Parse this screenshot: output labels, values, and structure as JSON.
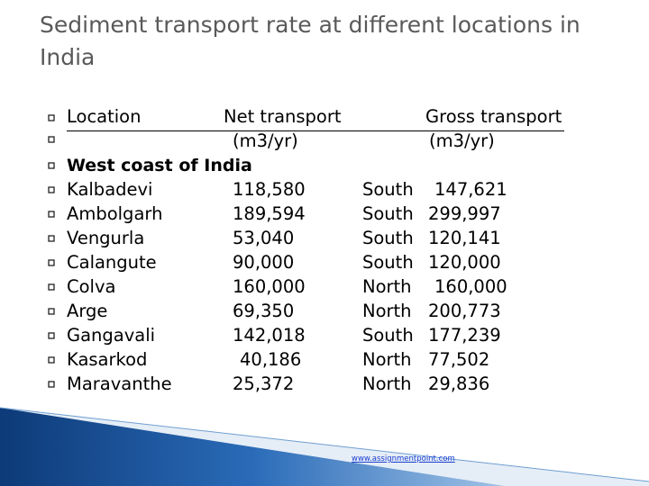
{
  "title": "Sediment transport rate at different locations in India",
  "table": {
    "header": {
      "location": "Location",
      "net_line1": "Net transport",
      "net_line2": "(m3/yr)",
      "gross_line1": "Gross transport",
      "gross_line2": "(m3/yr)"
    },
    "section": "West coast of India",
    "rows": [
      {
        "location": "Kalbadevi",
        "net": "118,580",
        "direction": "South",
        "gross": "147,621"
      },
      {
        "location": "Ambolgarh",
        "net": "189,594",
        "direction": "South",
        "gross": "299,997"
      },
      {
        "location": "Vengurla",
        "net": "53,040",
        "direction": "South",
        "gross": "120,141"
      },
      {
        "location": "Calangute",
        "net": "90,000",
        "direction": "South",
        "gross": "120,000"
      },
      {
        "location": "Colva",
        "net": "160,000",
        "direction": "North",
        "gross": "160,000"
      },
      {
        "location": "Arge",
        "net": "69,350",
        "direction": "North",
        "gross": "200,773"
      },
      {
        "location": "Gangavali",
        "net": "142,018",
        "direction": "South",
        "gross": "177,239"
      },
      {
        "location": "Kasarkod",
        "net": "40,186",
        "direction": "North",
        "gross": "77,502"
      },
      {
        "location": "Maravanthe",
        "net": "25,372",
        "direction": "North",
        "gross": "29,836"
      }
    ]
  },
  "footer": {
    "link": "www.assignmentpoint.com"
  },
  "colors": {
    "title": "#595959",
    "accent": "#1f5fa8",
    "link": "#1a3fd1"
  },
  "bullet_icon": "square-bullet-icon"
}
